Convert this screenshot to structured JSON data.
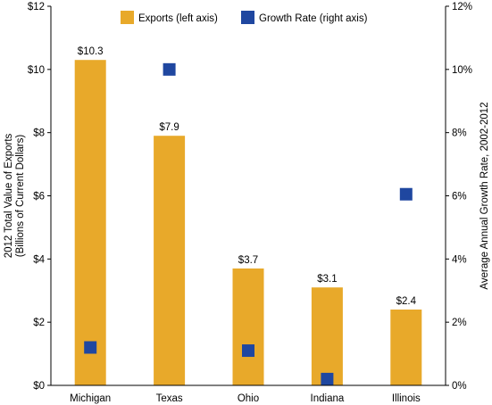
{
  "chart_data": {
    "type": "bar",
    "categories": [
      "Michigan",
      "Texas",
      "Ohio",
      "Indiana",
      "Illinois"
    ],
    "series": [
      {
        "name": "Exports (left axis)",
        "kind": "bar",
        "axis": "left",
        "color": "#E8A92A",
        "values": [
          10.3,
          7.9,
          3.7,
          3.1,
          2.4
        ],
        "labels": [
          "$10.3",
          "$7.9",
          "$3.7",
          "$3.1",
          "$2.4"
        ]
      },
      {
        "name": "Growth Rate (right axis)",
        "kind": "scatter",
        "marker": "square",
        "axis": "right",
        "color": "#1F47A0",
        "values": [
          1.2,
          10.0,
          1.1,
          0.2,
          6.05
        ]
      }
    ],
    "ylabel_left": "2012 Total Value of Exports\n(Billions of Current Dollars)",
    "ylabel_right": "Average Annual Growth Rate, 2002-2012",
    "ylim_left": [
      0,
      12
    ],
    "ylim_right": [
      0,
      12
    ],
    "yticks_left": [
      "$0",
      "$2",
      "$4",
      "$6",
      "$8",
      "$10",
      "$12"
    ],
    "yticks_right": [
      "0%",
      "2%",
      "4%",
      "6%",
      "8%",
      "10%",
      "12%"
    ],
    "legend_position": "top-center",
    "grid": false
  }
}
